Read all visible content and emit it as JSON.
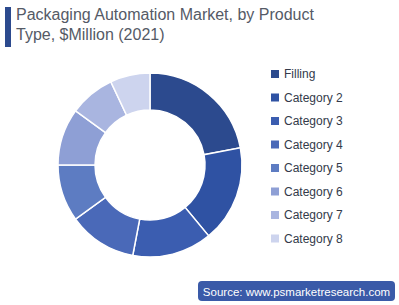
{
  "chart_data": {
    "type": "pie",
    "title": "Packaging Automation Market, by Product Type, $Million (2021)",
    "categories": [
      "Filling",
      "Category 2",
      "Category 3",
      "Category 4",
      "Category 5",
      "Category 6",
      "Category 7",
      "Category 8"
    ],
    "values": [
      22,
      17,
      14,
      12,
      10,
      10,
      8,
      7
    ],
    "colors": [
      "#2c4a8e",
      "#2f52a3",
      "#3b5db0",
      "#4a69b8",
      "#5d7cc2",
      "#8e9fd5",
      "#a9b5e0",
      "#cdd4ee"
    ],
    "legend": "right",
    "source": "Source: www.psmarketresearch.com"
  }
}
